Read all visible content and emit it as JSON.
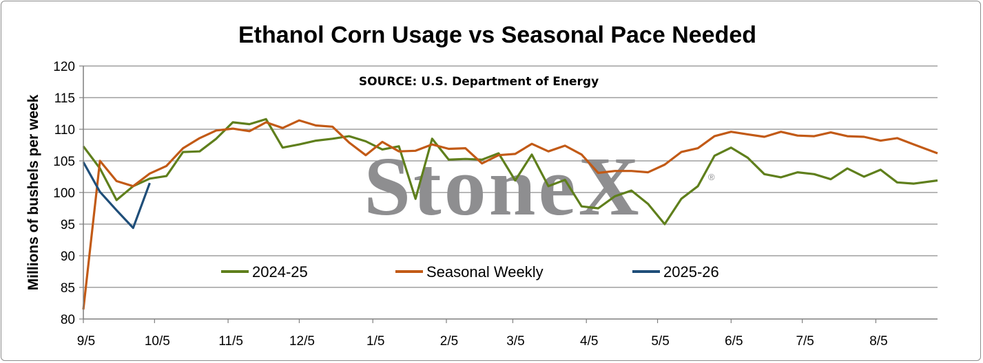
{
  "chart_data": {
    "type": "line",
    "title": "Ethanol Corn Usage vs Seasonal Pace Needed",
    "subtitle": "SOURCE: U.S. Department of Energy",
    "ylabel": "Millions of bushels per week",
    "xlabel": "",
    "ylim": [
      80,
      120
    ],
    "yticks": [
      80,
      85,
      90,
      95,
      100,
      105,
      110,
      115,
      120
    ],
    "xlim": [
      0,
      360
    ],
    "xticks": [
      {
        "label": "9/5",
        "x": 0
      },
      {
        "label": "10/5",
        "x": 30
      },
      {
        "label": "11/5",
        "x": 61
      },
      {
        "label": "12/5",
        "x": 91
      },
      {
        "label": "1/5",
        "x": 122
      },
      {
        "label": "2/5",
        "x": 153
      },
      {
        "label": "3/5",
        "x": 181
      },
      {
        "label": "4/5",
        "x": 212
      },
      {
        "label": "5/5",
        "x": 242
      },
      {
        "label": "6/5",
        "x": 273
      },
      {
        "label": "7/5",
        "x": 303
      },
      {
        "label": "8/5",
        "x": 334
      }
    ],
    "grid": "horizontal",
    "legend_position": "bottom",
    "watermark": "StoneX",
    "series": [
      {
        "name": "2024-25",
        "color": "#5f7f1c",
        "points": [
          [
            0,
            107.3
          ],
          [
            7,
            103.8
          ],
          [
            14,
            98.8
          ],
          [
            21,
            101.0
          ],
          [
            28,
            102.2
          ],
          [
            35,
            102.6
          ],
          [
            42,
            106.4
          ],
          [
            49,
            106.5
          ],
          [
            56,
            108.5
          ],
          [
            63,
            111.1
          ],
          [
            70,
            110.8
          ],
          [
            77,
            111.6
          ],
          [
            84,
            107.1
          ],
          [
            91,
            107.6
          ],
          [
            98,
            108.2
          ],
          [
            105,
            108.5
          ],
          [
            112,
            108.9
          ],
          [
            119,
            108.1
          ],
          [
            126,
            106.8
          ],
          [
            133,
            107.3
          ],
          [
            140,
            99.0
          ],
          [
            147,
            108.5
          ],
          [
            154,
            105.2
          ],
          [
            161,
            105.3
          ],
          [
            168,
            105.2
          ],
          [
            175,
            106.2
          ],
          [
            182,
            101.9
          ],
          [
            189,
            106.0
          ],
          [
            196,
            101.0
          ],
          [
            203,
            102.0
          ],
          [
            210,
            97.8
          ],
          [
            217,
            97.5
          ],
          [
            224,
            99.4
          ],
          [
            231,
            100.3
          ],
          [
            238,
            98.2
          ],
          [
            245,
            95.0
          ],
          [
            252,
            99.0
          ],
          [
            259,
            101.0
          ],
          [
            266,
            105.8
          ],
          [
            273,
            107.1
          ],
          [
            280,
            105.5
          ],
          [
            287,
            102.9
          ],
          [
            294,
            102.4
          ],
          [
            301,
            103.2
          ],
          [
            308,
            102.9
          ],
          [
            315,
            102.1
          ],
          [
            322,
            103.8
          ],
          [
            329,
            102.5
          ],
          [
            336,
            103.6
          ],
          [
            343,
            101.6
          ],
          [
            350,
            101.4
          ],
          [
            360,
            101.9
          ]
        ]
      },
      {
        "name": "Seasonal Weekly",
        "color": "#c25a16",
        "points": [
          [
            0,
            81.5
          ],
          [
            7,
            105.0
          ],
          [
            14,
            101.8
          ],
          [
            21,
            101.0
          ],
          [
            28,
            103.0
          ],
          [
            35,
            104.2
          ],
          [
            42,
            107.0
          ],
          [
            49,
            108.6
          ],
          [
            56,
            109.8
          ],
          [
            63,
            110.1
          ],
          [
            70,
            109.7
          ],
          [
            77,
            111.1
          ],
          [
            84,
            110.2
          ],
          [
            91,
            111.4
          ],
          [
            98,
            110.6
          ],
          [
            105,
            110.4
          ],
          [
            112,
            107.9
          ],
          [
            119,
            105.9
          ],
          [
            126,
            108.0
          ],
          [
            133,
            106.5
          ],
          [
            140,
            106.6
          ],
          [
            147,
            107.6
          ],
          [
            154,
            106.9
          ],
          [
            161,
            107.0
          ],
          [
            168,
            104.6
          ],
          [
            175,
            105.9
          ],
          [
            182,
            106.1
          ],
          [
            189,
            107.7
          ],
          [
            196,
            106.5
          ],
          [
            203,
            107.4
          ],
          [
            210,
            106.0
          ],
          [
            217,
            103.1
          ],
          [
            224,
            103.4
          ],
          [
            231,
            103.4
          ],
          [
            238,
            103.2
          ],
          [
            245,
            104.4
          ],
          [
            252,
            106.4
          ],
          [
            259,
            107.0
          ],
          [
            266,
            108.9
          ],
          [
            273,
            109.6
          ],
          [
            280,
            109.2
          ],
          [
            287,
            108.8
          ],
          [
            294,
            109.6
          ],
          [
            301,
            109.0
          ],
          [
            308,
            108.9
          ],
          [
            315,
            109.5
          ],
          [
            322,
            108.9
          ],
          [
            329,
            108.8
          ],
          [
            336,
            108.2
          ],
          [
            343,
            108.6
          ],
          [
            350,
            107.6
          ],
          [
            360,
            106.2
          ]
        ]
      },
      {
        "name": "2025-26",
        "color": "#1f4e79",
        "points": [
          [
            0,
            104.8
          ],
          [
            7,
            100.1
          ],
          [
            14,
            97.2
          ],
          [
            21,
            94.4
          ],
          [
            28,
            101.5
          ]
        ]
      }
    ]
  }
}
